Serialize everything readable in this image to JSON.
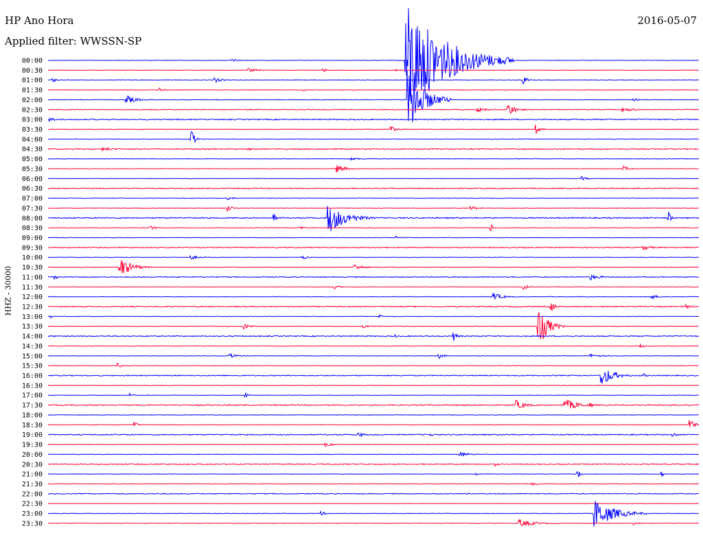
{
  "header": {
    "station": "HP Ano Hora",
    "filter_text": "Applied filter: WWSSN-SP",
    "date": "2016-05-07"
  },
  "colors": {
    "blue": "#0000ff",
    "red": "#ff0033"
  },
  "chart_data": {
    "type": "line",
    "title": "HP Ano Hora",
    "subtitle": "Applied filter: WWSSN-SP",
    "date": "2016-05-07",
    "ylabel": "HHZ - 30000",
    "xlabel": "",
    "series_colors_alternating": [
      "#0000ff",
      "#ff0033"
    ],
    "rows": [
      "00:00",
      "00:30",
      "01:00",
      "01:30",
      "02:00",
      "02:30",
      "03:00",
      "03:30",
      "04:00",
      "04:30",
      "05:00",
      "05:30",
      "06:00",
      "06:30",
      "07:00",
      "07:30",
      "08:00",
      "08:30",
      "09:00",
      "09:30",
      "10:00",
      "10:30",
      "11:00",
      "11:30",
      "12:00",
      "12:30",
      "13:00",
      "13:30",
      "14:00",
      "14:30",
      "15:00",
      "15:30",
      "16:00",
      "16:30",
      "17:00",
      "17:30",
      "18:00",
      "18:30",
      "19:00",
      "19:30",
      "20:00",
      "20:30",
      "21:00",
      "21:30",
      "22:00",
      "22:30",
      "23:00",
      "23:30"
    ],
    "row_minutes": 30,
    "noise": [
      1,
      0.8,
      1,
      1,
      1,
      1.6,
      2.2,
      1,
      1,
      2.2,
      1,
      1,
      1,
      2,
      1,
      1,
      2.4,
      1,
      1,
      2,
      1,
      1,
      1.8,
      1,
      1,
      2.2,
      1,
      1,
      2,
      1,
      1,
      1,
      2,
      1,
      1,
      2.2,
      1,
      1,
      2.2,
      1,
      1,
      2,
      1,
      1,
      1.8,
      1,
      1,
      1
    ],
    "events": [
      {
        "row": 0,
        "minute": 8.5,
        "amp": 2,
        "duration": 1.5
      },
      {
        "row": 0,
        "minute": 16.5,
        "amp": 86,
        "duration": 5
      },
      {
        "row": 0,
        "minute": 16.7,
        "amp": 10,
        "duration": 1.5
      },
      {
        "row": 1,
        "minute": 9.2,
        "amp": 3,
        "duration": 1.2
      },
      {
        "row": 1,
        "minute": 12.7,
        "amp": 3,
        "duration": 0.4
      },
      {
        "row": 1,
        "minute": 16.0,
        "amp": 5,
        "duration": 0.4
      },
      {
        "row": 2,
        "minute": 0.2,
        "amp": 3,
        "duration": 0.6
      },
      {
        "row": 2,
        "minute": 7.7,
        "amp": 4,
        "duration": 0.8
      },
      {
        "row": 2,
        "minute": 21.9,
        "amp": 6,
        "duration": 0.8
      },
      {
        "row": 3,
        "minute": 5.1,
        "amp": 4,
        "duration": 0.6
      },
      {
        "row": 3,
        "minute": 11.8,
        "amp": 2,
        "duration": 0.3
      },
      {
        "row": 4,
        "minute": 3.6,
        "amp": 7,
        "duration": 1.2
      },
      {
        "row": 4,
        "minute": 16.6,
        "amp": 50,
        "duration": 2
      },
      {
        "row": 4,
        "minute": 27.0,
        "amp": 3,
        "duration": 0.5
      },
      {
        "row": 5,
        "minute": 19.8,
        "amp": 4,
        "duration": 1.2
      },
      {
        "row": 5,
        "minute": 21.2,
        "amp": 10,
        "duration": 1
      },
      {
        "row": 5,
        "minute": 26.5,
        "amp": 3,
        "duration": 2
      },
      {
        "row": 6,
        "minute": 0.1,
        "amp": 5,
        "duration": 0.5
      },
      {
        "row": 7,
        "minute": 15.8,
        "amp": 4,
        "duration": 1
      },
      {
        "row": 7,
        "minute": 22.5,
        "amp": 7,
        "duration": 0.6
      },
      {
        "row": 8,
        "minute": 6.6,
        "amp": 16,
        "duration": 0.4
      },
      {
        "row": 9,
        "minute": 2.5,
        "amp": 3,
        "duration": 2
      },
      {
        "row": 9,
        "minute": 9.2,
        "amp": 3,
        "duration": 0.5
      },
      {
        "row": 10,
        "minute": 14.0,
        "amp": 2,
        "duration": 1.5
      },
      {
        "row": 11,
        "minute": 13.3,
        "amp": 6,
        "duration": 1.2
      },
      {
        "row": 11,
        "minute": 26.5,
        "amp": 4,
        "duration": 0.8
      },
      {
        "row": 12,
        "minute": 24.6,
        "amp": 3,
        "duration": 0.8
      },
      {
        "row": 14,
        "minute": 8.3,
        "amp": 2,
        "duration": 1
      },
      {
        "row": 15,
        "minute": 8.3,
        "amp": 6,
        "duration": 0.5
      },
      {
        "row": 15,
        "minute": 19.5,
        "amp": 3,
        "duration": 1
      },
      {
        "row": 16,
        "minute": 10.4,
        "amp": 8,
        "duration": 0.3
      },
      {
        "row": 16,
        "minute": 12.9,
        "amp": 24,
        "duration": 2.2
      },
      {
        "row": 16,
        "minute": 28.6,
        "amp": 10,
        "duration": 0.4
      },
      {
        "row": 17,
        "minute": 4.7,
        "amp": 4,
        "duration": 0.6
      },
      {
        "row": 17,
        "minute": 11.6,
        "amp": 3,
        "duration": 0.6
      },
      {
        "row": 17,
        "minute": 20.4,
        "amp": 7,
        "duration": 0.4
      },
      {
        "row": 18,
        "minute": 16.0,
        "amp": 3,
        "duration": 0.8
      },
      {
        "row": 19,
        "minute": 27.4,
        "amp": 4,
        "duration": 1.2
      },
      {
        "row": 20,
        "minute": 6.6,
        "amp": 3,
        "duration": 1.2
      },
      {
        "row": 20,
        "minute": 11.7,
        "amp": 4,
        "duration": 0.6
      },
      {
        "row": 21,
        "minute": 3.3,
        "amp": 15,
        "duration": 1.5
      },
      {
        "row": 21,
        "minute": 14.1,
        "amp": 5,
        "duration": 1.2
      },
      {
        "row": 22,
        "minute": 0.3,
        "amp": 3,
        "duration": 0.6
      },
      {
        "row": 22,
        "minute": 25.0,
        "amp": 5,
        "duration": 1.2
      },
      {
        "row": 23,
        "minute": 13.2,
        "amp": 3,
        "duration": 0.8
      },
      {
        "row": 23,
        "minute": 21.9,
        "amp": 5,
        "duration": 0.6
      },
      {
        "row": 24,
        "minute": 20.5,
        "amp": 6,
        "duration": 1.2
      },
      {
        "row": 24,
        "minute": 27.8,
        "amp": 3,
        "duration": 1.2
      },
      {
        "row": 25,
        "minute": 29.4,
        "amp": 4,
        "duration": 0.6
      },
      {
        "row": 25,
        "minute": 23.2,
        "amp": 10,
        "duration": 0.4
      },
      {
        "row": 26,
        "minute": 0.1,
        "amp": 3,
        "duration": 0.3
      },
      {
        "row": 26,
        "minute": 15.3,
        "amp": 3,
        "duration": 0.4
      },
      {
        "row": 27,
        "minute": 9.0,
        "amp": 5,
        "duration": 0.8
      },
      {
        "row": 27,
        "minute": 14.5,
        "amp": 3,
        "duration": 1.2
      },
      {
        "row": 27,
        "minute": 22.6,
        "amp": 32,
        "duration": 1.2
      },
      {
        "row": 28,
        "minute": 16.0,
        "amp": 3,
        "duration": 0.3
      },
      {
        "row": 28,
        "minute": 18.7,
        "amp": 7,
        "duration": 0.6
      },
      {
        "row": 29,
        "minute": 27.3,
        "amp": 3,
        "duration": 0.8
      },
      {
        "row": 30,
        "minute": 8.4,
        "amp": 3,
        "duration": 1.2
      },
      {
        "row": 30,
        "minute": 18.0,
        "amp": 6,
        "duration": 0.6
      },
      {
        "row": 30,
        "minute": 25.0,
        "amp": 3,
        "duration": 1.5
      },
      {
        "row": 31,
        "minute": 3.2,
        "amp": 4,
        "duration": 0.6
      },
      {
        "row": 32,
        "minute": 25.5,
        "amp": 16,
        "duration": 1.5
      },
      {
        "row": 32,
        "minute": 27.4,
        "amp": 5,
        "duration": 0.4
      },
      {
        "row": 34,
        "minute": 3.8,
        "amp": 3,
        "duration": 0.4
      },
      {
        "row": 34,
        "minute": 9.1,
        "amp": 4,
        "duration": 0.4
      },
      {
        "row": 35,
        "minute": 21.6,
        "amp": 7,
        "duration": 1.2
      },
      {
        "row": 35,
        "minute": 23.8,
        "amp": 9,
        "duration": 2
      },
      {
        "row": 35,
        "minute": 25.0,
        "amp": 5,
        "duration": 0.3
      },
      {
        "row": 37,
        "minute": 4.0,
        "amp": 7,
        "duration": 0.3
      },
      {
        "row": 37,
        "minute": 29.6,
        "amp": 8,
        "duration": 0.6
      },
      {
        "row": 38,
        "minute": 14.3,
        "amp": 5,
        "duration": 0.6
      },
      {
        "row": 38,
        "minute": 17.6,
        "amp": 3,
        "duration": 0.4
      },
      {
        "row": 38,
        "minute": 28.8,
        "amp": 4,
        "duration": 0.6
      },
      {
        "row": 39,
        "minute": 12.8,
        "amp": 3,
        "duration": 0.8
      },
      {
        "row": 40,
        "minute": 19.0,
        "amp": 4,
        "duration": 1.2
      },
      {
        "row": 41,
        "minute": 20.6,
        "amp": 3,
        "duration": 0.6
      },
      {
        "row": 42,
        "minute": 19.7,
        "amp": 3,
        "duration": 0.4
      },
      {
        "row": 42,
        "minute": 24.4,
        "amp": 8,
        "duration": 0.3
      },
      {
        "row": 42,
        "minute": 28.3,
        "amp": 4,
        "duration": 0.3
      },
      {
        "row": 43,
        "minute": 22.3,
        "amp": 3,
        "duration": 0.8
      },
      {
        "row": 46,
        "minute": 12.6,
        "amp": 3,
        "duration": 0.6
      },
      {
        "row": 46,
        "minute": 25.2,
        "amp": 22,
        "duration": 2.5
      },
      {
        "row": 47,
        "minute": 21.7,
        "amp": 6,
        "duration": 2
      },
      {
        "row": 47,
        "minute": 27.0,
        "amp": 3,
        "duration": 0.6
      }
    ]
  }
}
